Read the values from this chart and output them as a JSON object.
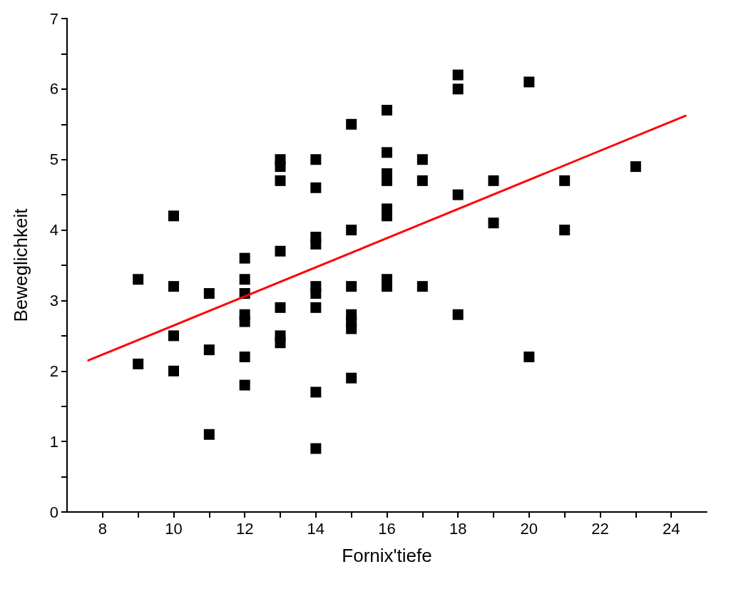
{
  "chart_data": {
    "type": "scatter",
    "xlabel": "Fornix'tiefe",
    "ylabel": "Beweglichkeit",
    "xlim": [
      7,
      25
    ],
    "xticks": [
      8,
      {
        "value": 9,
        "label": null
      },
      10,
      {
        "value": 11,
        "label": null
      },
      12,
      {
        "value": 13,
        "label": null
      },
      14,
      {
        "value": 15,
        "label": null
      },
      16,
      {
        "value": 17,
        "label": null
      },
      18,
      {
        "value": 19,
        "label": null
      },
      20,
      {
        "value": 21,
        "label": null
      },
      22,
      {
        "value": 23,
        "label": null
      },
      24
    ],
    "ylim": [
      0,
      7
    ],
    "yticks": [
      0,
      {
        "value": 0.5,
        "label": null
      },
      1,
      {
        "value": 1.5,
        "label": null
      },
      2,
      {
        "value": 2.5,
        "label": null
      },
      3,
      {
        "value": 3.5,
        "label": null
      },
      4,
      {
        "value": 4.5,
        "label": null
      },
      5,
      {
        "value": 5.5,
        "label": null
      },
      6,
      {
        "value": 6.5,
        "label": null
      },
      7
    ],
    "grid": false,
    "marker": "square",
    "series": [
      {
        "color": "#000000",
        "x": [
          9,
          9,
          10,
          10,
          10,
          10,
          11,
          11,
          11,
          12,
          12,
          12,
          12,
          12,
          12,
          12,
          13,
          13,
          13,
          13,
          13,
          13,
          13,
          14,
          14,
          14,
          14,
          14,
          14,
          14,
          14,
          14,
          15,
          15,
          15,
          15,
          15,
          15,
          15,
          16,
          16,
          16,
          16,
          16,
          16,
          16,
          16,
          17,
          17,
          17,
          18,
          18,
          18,
          18,
          19,
          19,
          20,
          20,
          21,
          21,
          23
        ],
        "values": [
          3.3,
          2.1,
          4.2,
          3.2,
          2.5,
          2.0,
          3.1,
          2.3,
          1.1,
          3.6,
          3.3,
          3.1,
          2.8,
          2.7,
          2.2,
          1.8,
          5.0,
          4.9,
          4.7,
          3.7,
          2.9,
          2.5,
          2.4,
          5.0,
          4.6,
          3.9,
          3.8,
          3.2,
          3.1,
          2.9,
          1.7,
          0.9,
          5.5,
          4.0,
          3.2,
          2.8,
          2.7,
          2.6,
          1.9,
          5.7,
          5.1,
          4.8,
          4.7,
          4.3,
          4.2,
          3.3,
          3.2,
          5.0,
          4.7,
          3.2,
          6.2,
          6.0,
          4.5,
          2.8,
          4.7,
          4.1,
          6.1,
          2.2,
          4.7,
          4.0,
          4.9
        ]
      },
      {
        "type": "line",
        "color": "#ff0000",
        "marker": "none",
        "line_style": "solid",
        "x": [
          7.6,
          24.4
        ],
        "values": [
          2.15,
          5.62
        ]
      }
    ]
  }
}
